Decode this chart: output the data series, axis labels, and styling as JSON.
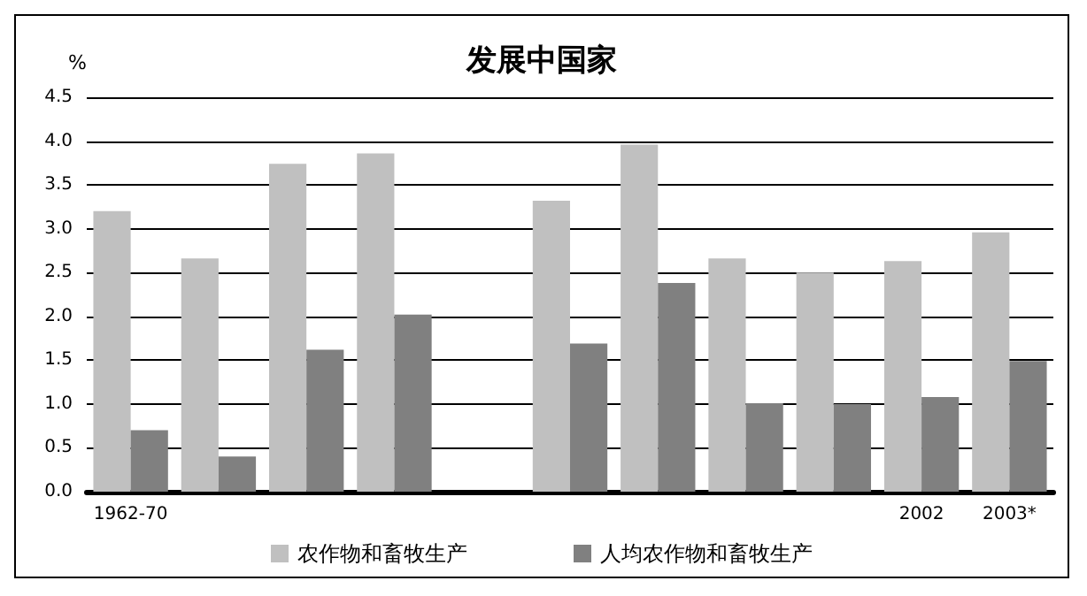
{
  "chart_data": {
    "type": "bar",
    "title": "发展中国家",
    "ylabel": "%",
    "categories": [
      "1962-70",
      null,
      null,
      null,
      null,
      null,
      null,
      null,
      null,
      "2002",
      "2003*"
    ],
    "series": [
      {
        "name": "农作物和畜牧生产",
        "color": "#c0c0c0",
        "values": [
          3.2,
          2.66,
          3.74,
          3.86,
          null,
          3.32,
          3.96,
          2.66,
          2.5,
          2.63,
          2.96
        ]
      },
      {
        "name": "人均农作物和畜牧生产",
        "color": "#808080",
        "values": [
          0.7,
          0.4,
          1.62,
          2.02,
          null,
          1.69,
          2.38,
          1.01,
          1.0,
          1.08,
          1.49
        ]
      }
    ],
    "ylim": [
      0,
      4.5
    ],
    "yticks": [
      {
        "value": 0,
        "label": "0.0"
      },
      0.5,
      {
        "value": 1,
        "label": "1.0"
      },
      1.5,
      {
        "value": 2,
        "label": "2.0"
      },
      2.5,
      {
        "value": 3,
        "label": "3.0"
      },
      3.5,
      {
        "value": 4,
        "label": "4.0"
      },
      4.5
    ],
    "grid": "y",
    "legend": "bottom"
  }
}
